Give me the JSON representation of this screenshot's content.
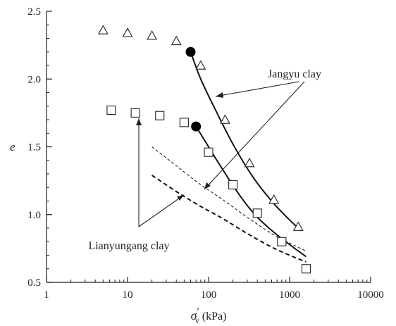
{
  "chart_data": {
    "type": "scatter",
    "xscale": "log",
    "xlim": [
      1,
      10000
    ],
    "ylim": [
      0.5,
      2.5
    ],
    "grid": false,
    "x_ticks": [
      "1",
      "10",
      "100",
      "1000",
      "10000"
    ],
    "y_ticks": [
      "0.5",
      "1.0",
      "1.5",
      "2.0",
      "2.5"
    ],
    "xlabel": {
      "main": "σ",
      "sub": "v",
      "prime": "′",
      "unit": " (kPa)"
    },
    "ylabel": "e",
    "annotations": [
      "Jangyu clay",
      "Lianyungang clay"
    ],
    "series": [
      {
        "marker": "triangle",
        "x": [
          5,
          10,
          20,
          40,
          80,
          160,
          320,
          640,
          1280
        ],
        "y": [
          2.36,
          2.34,
          2.32,
          2.28,
          2.1,
          1.7,
          1.38,
          1.11,
          0.91
        ]
      },
      {
        "marker": "square",
        "x": [
          6.3,
          12.5,
          25,
          50,
          100,
          200,
          400,
          800,
          1600
        ],
        "y": [
          1.77,
          1.75,
          1.73,
          1.68,
          1.46,
          1.22,
          1.01,
          0.8,
          0.6
        ]
      },
      {
        "marker": "filled-circle",
        "x": [
          60,
          70
        ],
        "y": [
          2.2,
          1.65
        ]
      },
      {
        "type": "line",
        "style": "solid",
        "x": [
          60,
          80,
          120,
          200,
          350,
          600,
          1000,
          1400
        ],
        "y": [
          2.2,
          2.0,
          1.78,
          1.52,
          1.28,
          1.1,
          0.96,
          0.88
        ]
      },
      {
        "type": "line",
        "style": "solid",
        "x": [
          70,
          100,
          150,
          250,
          400,
          700,
          1100,
          1600
        ],
        "y": [
          1.65,
          1.5,
          1.33,
          1.13,
          0.98,
          0.85,
          0.76,
          0.69
        ]
      },
      {
        "type": "line",
        "style": "thin-dashed",
        "x": [
          20,
          40,
          80,
          150,
          300,
          600,
          1000,
          1600
        ],
        "y": [
          1.5,
          1.36,
          1.22,
          1.11,
          0.98,
          0.86,
          0.79,
          0.73
        ]
      },
      {
        "type": "line",
        "style": "thick-dashed",
        "x": [
          20,
          40,
          80,
          150,
          300,
          600,
          1000,
          1600
        ],
        "y": [
          1.29,
          1.17,
          1.06,
          0.97,
          0.86,
          0.76,
          0.7,
          0.65
        ]
      }
    ]
  }
}
